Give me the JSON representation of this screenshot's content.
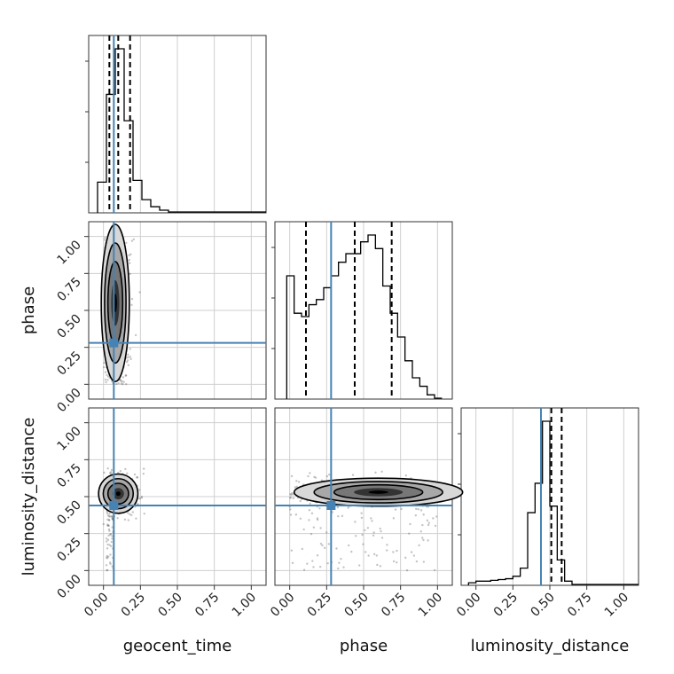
{
  "chart_data": {
    "type": "corner",
    "parameters": [
      "geocent_time",
      "phase",
      "luminosity_distance"
    ],
    "ticks": [
      0.0,
      0.25,
      0.5,
      0.75,
      1.0
    ],
    "tick_labels": [
      "0.00",
      "0.25",
      "0.50",
      "0.75",
      "1.00"
    ],
    "range": [
      -0.1,
      1.1
    ],
    "grid": true,
    "truth_color": "#4682b4",
    "truths": {
      "geocent_time": 0.07,
      "phase": 0.28,
      "luminosity_distance": 0.44
    },
    "quantiles": {
      "geocent_time": [
        0.04,
        0.1,
        0.18
      ],
      "phase": [
        0.11,
        0.44,
        0.69
      ],
      "luminosity_distance": [
        0.44,
        0.51,
        0.58
      ]
    },
    "histograms": {
      "geocent_time": {
        "bin_width": 0.06,
        "edges_start": -0.04,
        "counts": [
          0.17,
          0.67,
          0.93,
          0.52,
          0.18,
          0.07,
          0.03,
          0.01,
          0,
          0,
          0,
          0,
          0,
          0,
          0,
          0,
          0,
          0,
          0,
          0
        ]
      },
      "phase": {
        "bin_width": 0.05,
        "edges_start": -0.02,
        "counts": [
          0.72,
          0.5,
          0.48,
          0.55,
          0.58,
          0.65,
          0.72,
          0.8,
          0.85,
          0.85,
          0.92,
          0.96,
          0.88,
          0.66,
          0.5,
          0.36,
          0.22,
          0.12,
          0.07,
          0.02,
          0.0
        ]
      },
      "luminosity_distance": {
        "bin_width": 0.05,
        "edges_start": -0.05,
        "counts": [
          0.01,
          0.02,
          0.02,
          0.025,
          0.03,
          0.035,
          0.05,
          0.1,
          0.44,
          0.62,
          1.0,
          0.48,
          0.15,
          0.02,
          0,
          0,
          0,
          0,
          0,
          0,
          0,
          0,
          0,
          0
        ]
      }
    },
    "pairs": [
      {
        "x": "geocent_time",
        "y": "phase",
        "mode": [
          0.08,
          0.55
        ],
        "spread": [
          0.05,
          0.28
        ],
        "density": "vertical"
      },
      {
        "x": "geocent_time",
        "y": "luminosity_distance",
        "mode": [
          0.1,
          0.52
        ],
        "spread": [
          0.07,
          0.07
        ],
        "density": "compact"
      },
      {
        "x": "phase",
        "y": "luminosity_distance",
        "mode": [
          0.6,
          0.53
        ],
        "spread": [
          0.3,
          0.05
        ],
        "density": "horizontal"
      }
    ]
  }
}
